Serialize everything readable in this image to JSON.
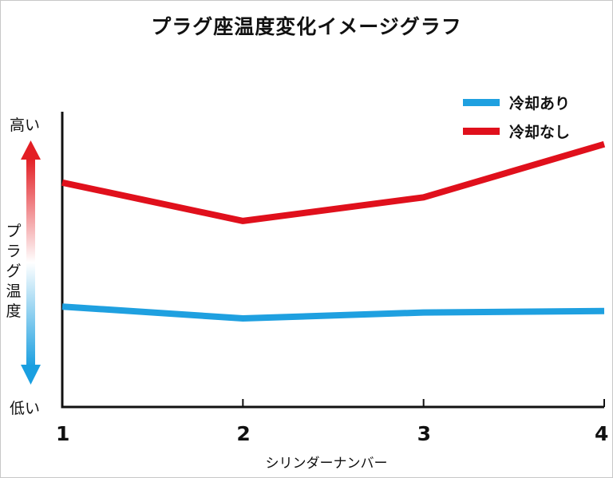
{
  "chart_data": {
    "type": "line",
    "title": "プラグ座温度変化イメージグラフ",
    "xlabel": "シリンダーナンバー",
    "ylabel": "プラグ温度",
    "y_high_label": "高い",
    "y_low_label": "低い",
    "x": [
      "1",
      "2",
      "3",
      "4"
    ],
    "ylim": [
      0,
      100
    ],
    "series": [
      {
        "name": "冷却あり",
        "color": "#1fa0e0",
        "values": [
          34,
          30,
          32,
          32.5
        ]
      },
      {
        "name": "冷却なし",
        "color": "#e0101c",
        "values": [
          76,
          63,
          71,
          89
        ]
      }
    ],
    "legend_position": "top-right",
    "grid": false
  }
}
